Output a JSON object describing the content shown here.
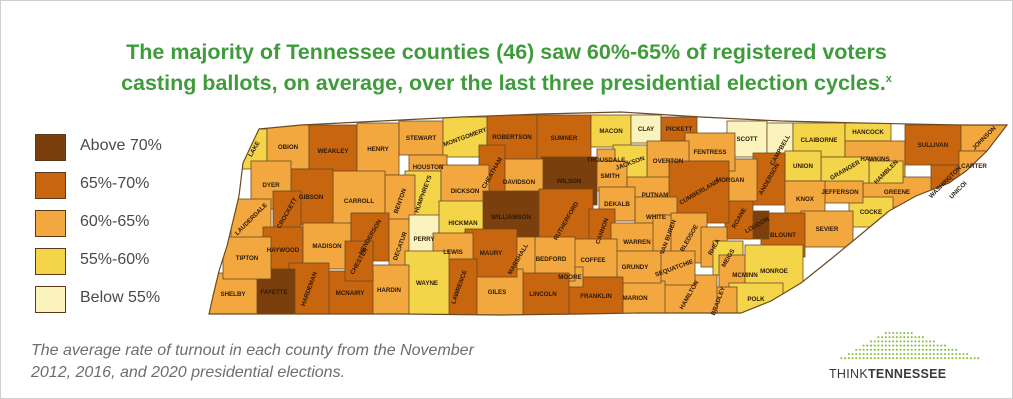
{
  "title": {
    "line1": "The majority of Tennessee counties (46) saw 60%-65% of registered voters",
    "line2": "casting ballots, on average, over the last three presidential election cycles.",
    "footnote_mark": "x"
  },
  "legend": [
    {
      "label": "Above 70%",
      "color": "#7a3f0c"
    },
    {
      "label": "65%-70%",
      "color": "#c8650f"
    },
    {
      "label": "60%-65%",
      "color": "#f2a73f"
    },
    {
      "label": "55%-60%",
      "color": "#f4d54a"
    },
    {
      "label": "Below 55%",
      "color": "#fbf3bd"
    }
  ],
  "caption": {
    "line1": "The average rate of turnout in each county from the November",
    "line2": "2012, 2016, and 2020 presidential elections."
  },
  "logo": {
    "part1": "THINK",
    "part2": "TENNESSEE",
    "accent": "#8bbf3f"
  },
  "counties": [
    {
      "name": "LAKE",
      "cat": 3
    },
    {
      "name": "OBION",
      "cat": 2
    },
    {
      "name": "WEAKLEY",
      "cat": 1
    },
    {
      "name": "HENRY",
      "cat": 2
    },
    {
      "name": "STEWART",
      "cat": 2
    },
    {
      "name": "MONTGOMERY",
      "cat": 3
    },
    {
      "name": "ROBERTSON",
      "cat": 1
    },
    {
      "name": "SUMNER",
      "cat": 1
    },
    {
      "name": "MACON",
      "cat": 3
    },
    {
      "name": "CLAY",
      "cat": 4
    },
    {
      "name": "PICKETT",
      "cat": 1
    },
    {
      "name": "SCOTT",
      "cat": 4
    },
    {
      "name": "CAMPBELL",
      "cat": 4
    },
    {
      "name": "CLAIBORNE",
      "cat": 3
    },
    {
      "name": "HANCOCK",
      "cat": 3
    },
    {
      "name": "HAWKINS",
      "cat": 2
    },
    {
      "name": "SULLIVAN",
      "cat": 1
    },
    {
      "name": "JOHNSON",
      "cat": 2
    },
    {
      "name": "CARTER",
      "cat": 2
    },
    {
      "name": "WASHINGTON",
      "cat": 1
    },
    {
      "name": "UNICOI",
      "cat": 1
    },
    {
      "name": "GREENE",
      "cat": 2
    },
    {
      "name": "COCKE",
      "cat": 3
    },
    {
      "name": "HAMBLEN",
      "cat": 3
    },
    {
      "name": "GRAINGER",
      "cat": 3
    },
    {
      "name": "JEFFERSON",
      "cat": 2
    },
    {
      "name": "UNION",
      "cat": 3
    },
    {
      "name": "ANDERSON",
      "cat": 1
    },
    {
      "name": "KNOX",
      "cat": 2
    },
    {
      "name": "SEVIER",
      "cat": 2
    },
    {
      "name": "BLOUNT",
      "cat": 1
    },
    {
      "name": "LOUDON",
      "cat": 0
    },
    {
      "name": "ROANE",
      "cat": 1
    },
    {
      "name": "MORGAN",
      "cat": 2
    },
    {
      "name": "FENTRESS",
      "cat": 2
    },
    {
      "name": "OVERTON",
      "cat": 2
    },
    {
      "name": "JACKSON",
      "cat": 3
    },
    {
      "name": "TROUSDALE",
      "cat": 2
    },
    {
      "name": "SMITH",
      "cat": 2
    },
    {
      "name": "PUTNAM",
      "cat": 2
    },
    {
      "name": "CUMBERLAND",
      "cat": 1
    },
    {
      "name": "WHITE",
      "cat": 2
    },
    {
      "name": "DEKALB",
      "cat": 2
    },
    {
      "name": "WILSON",
      "cat": 0
    },
    {
      "name": "DAVIDSON",
      "cat": 2
    },
    {
      "name": "CHEATHAM",
      "cat": 1
    },
    {
      "name": "HOUSTON",
      "cat": 2
    },
    {
      "name": "HUMPHREYS",
      "cat": 3
    },
    {
      "name": "DICKSON",
      "cat": 2
    },
    {
      "name": "BENTON",
      "cat": 2
    },
    {
      "name": "CARROLL",
      "cat": 2
    },
    {
      "name": "GIBSON",
      "cat": 1
    },
    {
      "name": "DYER",
      "cat": 2
    },
    {
      "name": "LAUDERDALE",
      "cat": 2
    },
    {
      "name": "CROCKETT",
      "cat": 1
    },
    {
      "name": "HAYWOOD",
      "cat": 1
    },
    {
      "name": "MADISON",
      "cat": 2
    },
    {
      "name": "HENDERSON",
      "cat": 1
    },
    {
      "name": "DECATUR",
      "cat": 2
    },
    {
      "name": "PERRY",
      "cat": 4
    },
    {
      "name": "HICKMAN",
      "cat": 3
    },
    {
      "name": "WILLIAMSON",
      "cat": 0
    },
    {
      "name": "RUTHERFORD",
      "cat": 1
    },
    {
      "name": "CANNON",
      "cat": 1
    },
    {
      "name": "WARREN",
      "cat": 2
    },
    {
      "name": "VAN BUREN",
      "cat": 2
    },
    {
      "name": "BLEDSOE",
      "cat": 2
    },
    {
      "name": "RHEA",
      "cat": 2
    },
    {
      "name": "MEIGS",
      "cat": 3
    },
    {
      "name": "MCMINN",
      "cat": 2
    },
    {
      "name": "MONROE",
      "cat": 3
    },
    {
      "name": "POLK",
      "cat": 3
    },
    {
      "name": "BRADLEY",
      "cat": 2
    },
    {
      "name": "HAMILTON",
      "cat": 2
    },
    {
      "name": "SEQUATCHIE",
      "cat": 2
    },
    {
      "name": "MARION",
      "cat": 2
    },
    {
      "name": "GRUNDY",
      "cat": 2
    },
    {
      "name": "COFFEE",
      "cat": 2
    },
    {
      "name": "FRANKLIN",
      "cat": 1
    },
    {
      "name": "MOORE",
      "cat": 2
    },
    {
      "name": "BEDFORD",
      "cat": 2
    },
    {
      "name": "MARSHALL",
      "cat": 2
    },
    {
      "name": "LINCOLN",
      "cat": 1
    },
    {
      "name": "GILES",
      "cat": 2
    },
    {
      "name": "MAURY",
      "cat": 1
    },
    {
      "name": "LEWIS",
      "cat": 2
    },
    {
      "name": "LAWRENCE",
      "cat": 1
    },
    {
      "name": "WAYNE",
      "cat": 3
    },
    {
      "name": "HARDIN",
      "cat": 2
    },
    {
      "name": "MCNAIRY",
      "cat": 1
    },
    {
      "name": "CHESTER",
      "cat": 1
    },
    {
      "name": "HARDEMAN",
      "cat": 1
    },
    {
      "name": "FAYETTE",
      "cat": 0
    },
    {
      "name": "SHELBY",
      "cat": 2
    },
    {
      "name": "TIPTON",
      "cat": 2
    }
  ]
}
